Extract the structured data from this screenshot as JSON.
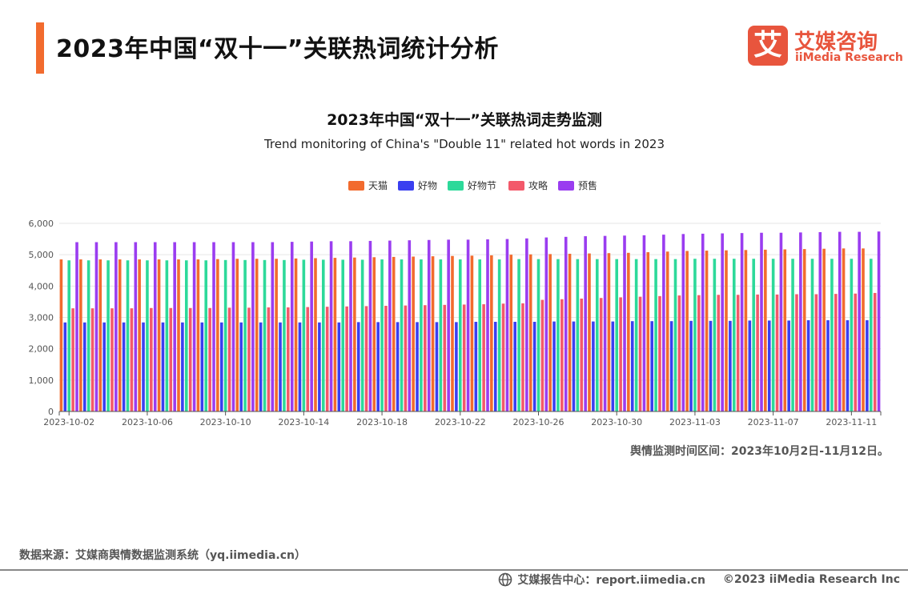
{
  "header": {
    "title": "2023年中国“双十一”关联热词统计分析",
    "logo": {
      "mark": "艾",
      "name_cn": "艾媒咨询",
      "name_en": "iiMedia Research"
    }
  },
  "note": "舆情监测时间区间：2023年10月2日-11月12日。",
  "source": "数据来源：艾媒商舆情数据监测系统（yq.iimedia.cn）",
  "footer": {
    "site": "艾媒报告中心：report.iimedia.cn",
    "copyright": "©2023  iiMedia Research  Inc",
    "icon": "globe-icon"
  },
  "chart_data": {
    "type": "bar",
    "title": "2023年中国“双十一”关联热词走势监测",
    "subtitle": "Trend monitoring of China's \"Double 11\" related hot words in 2023",
    "legend_position": "top-center",
    "ylim": [
      0,
      6000
    ],
    "yticks": [
      "0",
      "1,000",
      "2,000",
      "3,000",
      "4,000",
      "5,000",
      "6,000"
    ],
    "grid": true,
    "x_tick_labels": [
      "2023-10-02",
      "2023-10-06",
      "2023-10-10",
      "2023-10-14",
      "2023-10-18",
      "2023-10-22",
      "2023-10-26",
      "2023-10-30",
      "2023-11-03",
      "2023-11-07",
      "2023-11-11"
    ],
    "categories": [
      "2023-10-02",
      "2023-10-03",
      "2023-10-04",
      "2023-10-05",
      "2023-10-06",
      "2023-10-07",
      "2023-10-08",
      "2023-10-09",
      "2023-10-10",
      "2023-10-11",
      "2023-10-12",
      "2023-10-13",
      "2023-10-14",
      "2023-10-15",
      "2023-10-16",
      "2023-10-17",
      "2023-10-18",
      "2023-10-19",
      "2023-10-20",
      "2023-10-21",
      "2023-10-22",
      "2023-10-23",
      "2023-10-24",
      "2023-10-25",
      "2023-10-26",
      "2023-10-27",
      "2023-10-28",
      "2023-10-29",
      "2023-10-30",
      "2023-10-31",
      "2023-11-01",
      "2023-11-02",
      "2023-11-03",
      "2023-11-04",
      "2023-11-05",
      "2023-11-06",
      "2023-11-07",
      "2023-11-08",
      "2023-11-09",
      "2023-11-10",
      "2023-11-11",
      "2023-11-12"
    ],
    "series": [
      {
        "name": "天猫",
        "color": "#f26b2e",
        "values": [
          4850,
          4850,
          4850,
          4850,
          4850,
          4850,
          4850,
          4850,
          4860,
          4870,
          4870,
          4870,
          4880,
          4890,
          4900,
          4910,
          4920,
          4930,
          4940,
          4950,
          4960,
          4970,
          4980,
          5000,
          5010,
          5020,
          5030,
          5040,
          5050,
          5060,
          5080,
          5100,
          5120,
          5130,
          5140,
          5150,
          5160,
          5170,
          5180,
          5190,
          5200,
          5200
        ]
      },
      {
        "name": "好物",
        "color": "#3a3ff0",
        "values": [
          2840,
          2840,
          2840,
          2840,
          2840,
          2840,
          2840,
          2840,
          2840,
          2840,
          2840,
          2840,
          2840,
          2840,
          2840,
          2850,
          2850,
          2850,
          2850,
          2850,
          2850,
          2860,
          2860,
          2860,
          2860,
          2870,
          2870,
          2870,
          2870,
          2880,
          2880,
          2880,
          2890,
          2890,
          2890,
          2900,
          2900,
          2900,
          2910,
          2910,
          2910,
          2910
        ]
      },
      {
        "name": "好物节",
        "color": "#2dd99a",
        "values": [
          4820,
          4820,
          4820,
          4820,
          4820,
          4820,
          4820,
          4820,
          4830,
          4830,
          4830,
          4830,
          4840,
          4840,
          4840,
          4840,
          4850,
          4850,
          4850,
          4850,
          4850,
          4850,
          4850,
          4860,
          4860,
          4860,
          4860,
          4860,
          4860,
          4860,
          4860,
          4860,
          4870,
          4870,
          4870,
          4870,
          4870,
          4870,
          4870,
          4870,
          4870,
          4870
        ]
      },
      {
        "name": "攻略",
        "color": "#f3596a",
        "values": [
          3290,
          3290,
          3290,
          3290,
          3300,
          3300,
          3300,
          3300,
          3310,
          3310,
          3320,
          3320,
          3330,
          3340,
          3350,
          3360,
          3370,
          3380,
          3390,
          3400,
          3410,
          3420,
          3440,
          3450,
          3560,
          3580,
          3600,
          3620,
          3640,
          3660,
          3680,
          3700,
          3710,
          3720,
          3720,
          3730,
          3730,
          3740,
          3740,
          3750,
          3760,
          3780
        ]
      },
      {
        "name": "预售",
        "color": "#9a3df0",
        "values": [
          5400,
          5400,
          5400,
          5400,
          5400,
          5400,
          5400,
          5400,
          5400,
          5400,
          5400,
          5410,
          5420,
          5430,
          5430,
          5440,
          5450,
          5460,
          5470,
          5480,
          5480,
          5490,
          5500,
          5520,
          5550,
          5570,
          5590,
          5600,
          5610,
          5620,
          5640,
          5660,
          5670,
          5680,
          5690,
          5700,
          5700,
          5710,
          5720,
          5730,
          5730,
          5740
        ]
      }
    ]
  }
}
